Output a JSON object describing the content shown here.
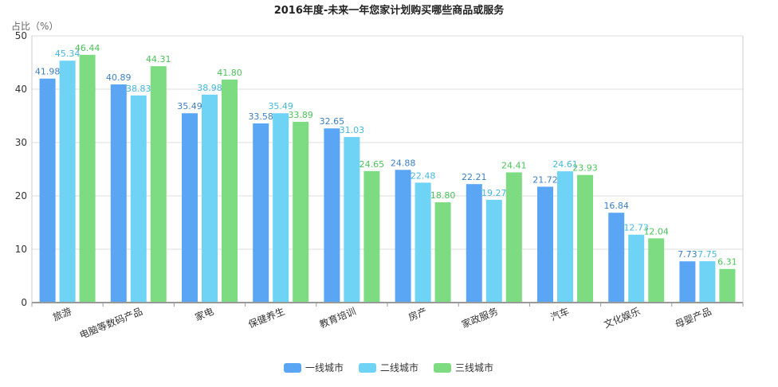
{
  "chart_data": {
    "type": "bar",
    "title": "2016年度-未来一年您家计划购买哪些商品或服务",
    "ylabel": "占比（%）",
    "xlabel": "",
    "ylim": [
      0,
      50
    ],
    "yticks": [
      0,
      10,
      20,
      30,
      40,
      50
    ],
    "grid": true,
    "legend_position": "bottom",
    "categories": [
      "旅游",
      "电脑等数码产品",
      "家电",
      "保健养生",
      "教育培训",
      "房产",
      "家政服务",
      "汽车",
      "文化娱乐",
      "母婴产品"
    ],
    "series": [
      {
        "name": "一线城市",
        "color": "#5aa6f5",
        "label_color": "#3d7fc4",
        "values": [
          41.98,
          40.89,
          35.49,
          33.58,
          32.65,
          24.88,
          22.21,
          21.72,
          16.84,
          7.73
        ]
      },
      {
        "name": "二线城市",
        "color": "#6ed3f5",
        "label_color": "#45b8dc",
        "values": [
          45.34,
          38.83,
          38.98,
          35.49,
          31.03,
          22.48,
          19.27,
          24.61,
          12.73,
          7.75
        ]
      },
      {
        "name": "三线城市",
        "color": "#7ddc82",
        "label_color": "#4cc25a",
        "values": [
          46.44,
          44.31,
          41.8,
          33.89,
          24.65,
          18.8,
          24.41,
          23.93,
          12.04,
          6.31
        ]
      }
    ]
  }
}
